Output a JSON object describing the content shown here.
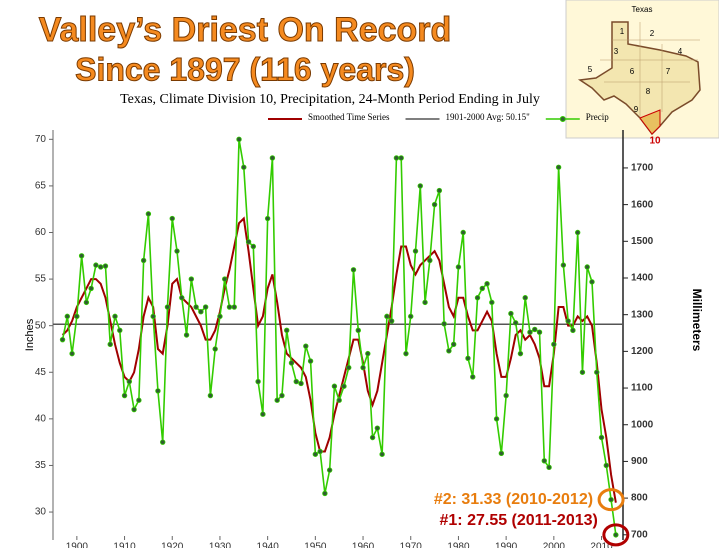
{
  "chart_data": {
    "type": "line",
    "banner": [
      "Valley’s Driest On Record",
      "Since 1897 (116 years)"
    ],
    "title": "Texas, Climate Division 10, Precipitation, 24-Month Period Ending in July",
    "y_label": "Inches",
    "y2_label": "Millimeters",
    "x": [
      1897,
      1898,
      1899,
      1900,
      1901,
      1902,
      1903,
      1904,
      1905,
      1906,
      1907,
      1908,
      1909,
      1910,
      1911,
      1912,
      1913,
      1914,
      1915,
      1916,
      1917,
      1918,
      1919,
      1920,
      1921,
      1922,
      1923,
      1924,
      1925,
      1926,
      1927,
      1928,
      1929,
      1930,
      1931,
      1932,
      1933,
      1934,
      1935,
      1936,
      1937,
      1938,
      1939,
      1940,
      1941,
      1942,
      1943,
      1944,
      1945,
      1946,
      1947,
      1948,
      1949,
      1950,
      1951,
      1952,
      1953,
      1954,
      1955,
      1956,
      1957,
      1958,
      1959,
      1960,
      1961,
      1962,
      1963,
      1964,
      1965,
      1966,
      1967,
      1968,
      1969,
      1970,
      1971,
      1972,
      1973,
      1974,
      1975,
      1976,
      1977,
      1978,
      1979,
      1980,
      1981,
      1982,
      1983,
      1984,
      1985,
      1986,
      1987,
      1988,
      1989,
      1990,
      1991,
      1992,
      1993,
      1994,
      1995,
      1996,
      1997,
      1998,
      1999,
      2000,
      2001,
      2002,
      2003,
      2004,
      2005,
      2006,
      2007,
      2008,
      2009,
      2010,
      2011,
      2012,
      2013
    ],
    "series": [
      {
        "name": "Smoothed Time Series",
        "color": "#a00000",
        "markers": false,
        "values": [
          49,
          49.5,
          50.5,
          52,
          53,
          54,
          55,
          55,
          54.5,
          53,
          50.5,
          48,
          46,
          44.5,
          44,
          45,
          47.5,
          51,
          53,
          52,
          47.5,
          47,
          50,
          54.5,
          55,
          53,
          52.5,
          52,
          51,
          50,
          48.5,
          48.5,
          49.5,
          51.5,
          54,
          56,
          58.5,
          61,
          61.5,
          58,
          54,
          50,
          51,
          54,
          55.5,
          52.5,
          49,
          47,
          46.5,
          46,
          45.5,
          44.5,
          42,
          38.5,
          36.5,
          36.5,
          38,
          40.5,
          42.5,
          44.5,
          46.5,
          48.5,
          48.5,
          46,
          43,
          41.5,
          43,
          46,
          49,
          52,
          55.5,
          58.5,
          58.5,
          56.5,
          55.5,
          56.5,
          57,
          57.5,
          58,
          57,
          54.5,
          52,
          51,
          53,
          53,
          51,
          49.5,
          49.5,
          50.5,
          51.5,
          50.5,
          47,
          44.5,
          44.5,
          46.5,
          49,
          49.5,
          48.5,
          49,
          48,
          46.5,
          43.5,
          43.5,
          47,
          52,
          52,
          50,
          50,
          51,
          50.5,
          51,
          50,
          46,
          41,
          38,
          34,
          31
        ]
      },
      {
        "name": "Precip",
        "color": "#33cc00",
        "markers": true,
        "values": [
          48.5,
          51,
          47,
          51,
          57.5,
          52.5,
          54,
          56.5,
          56.3,
          56.4,
          48,
          51,
          49.5,
          42.5,
          44,
          41,
          42,
          57,
          62,
          51,
          43,
          37.5,
          52,
          61.5,
          58,
          53,
          49,
          55,
          52,
          51.5,
          52,
          42.5,
          47.5,
          51,
          55,
          52,
          52,
          70,
          67,
          59,
          58.5,
          44,
          40.5,
          61.5,
          68,
          42,
          42.5,
          49.5,
          46,
          44,
          43.8,
          47.8,
          46.2,
          36.2,
          36.5,
          32,
          34.5,
          43.5,
          42,
          43.5,
          45.5,
          56,
          49.5,
          45.5,
          47,
          38,
          39,
          36.2,
          51,
          50.5,
          68,
          68,
          47,
          51,
          58,
          65,
          52.5,
          57,
          63,
          64.5,
          50.2,
          47.3,
          48,
          56.3,
          60,
          46.5,
          44.5,
          53,
          54,
          54.5,
          52.5,
          40,
          36.3,
          42.5,
          51.3,
          50.3,
          47,
          53,
          49.3,
          49.6,
          49.3,
          35.5,
          34.8,
          48,
          67,
          56.5,
          50.5,
          49.5,
          60,
          45,
          56.3,
          54.7,
          45,
          38,
          35,
          31.33,
          27.55
        ]
      }
    ],
    "reference_line": {
      "name": "1901-2000 Avg: 50.15\"",
      "value": 50.15,
      "color": "#555555"
    },
    "xlim": [
      1895,
      2014.5
    ],
    "xticks": [
      1900,
      1910,
      1920,
      1930,
      1940,
      1950,
      1960,
      1970,
      1980,
      1990,
      2000,
      2010
    ],
    "ylim": [
      27,
      71
    ],
    "yticks": [
      30,
      35,
      40,
      45,
      50,
      55,
      60,
      65,
      70
    ],
    "y2lim": [
      685.8,
      1803.4
    ],
    "y2ticks": [
      700,
      800,
      900,
      1000,
      1100,
      1200,
      1300,
      1400,
      1500,
      1600,
      1700
    ],
    "annotations": [
      {
        "text": "#2: 31.33 (2010-2012)",
        "color": "#e87d0e",
        "x": 2012,
        "y": 31.33
      },
      {
        "text": "#1: 27.55 (2011-2013)",
        "color": "#b00000",
        "x": 2013,
        "y": 27.55
      }
    ],
    "inset": {
      "title": "Texas",
      "division_labels": [
        "1",
        "2",
        "3",
        "4",
        "5",
        "6",
        "7",
        "8",
        "9"
      ],
      "highlight_label": "10"
    }
  }
}
